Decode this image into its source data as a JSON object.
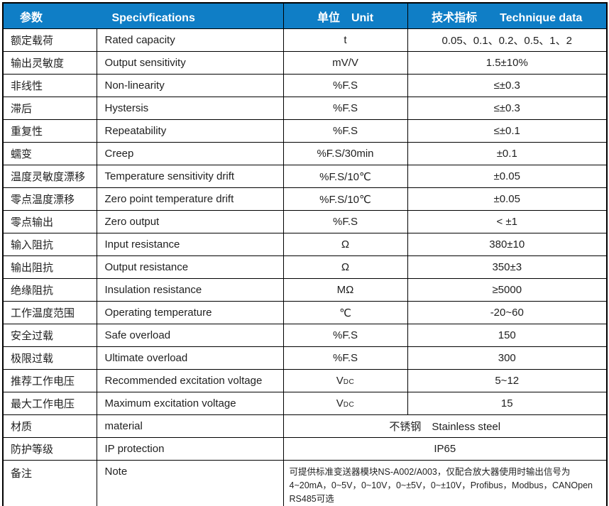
{
  "colors": {
    "header_bg": "#0f7ec6",
    "header_text": "#ffffff",
    "border": "#000000",
    "body_text": "#1f1f1f"
  },
  "table": {
    "header": {
      "param_cn": "参数",
      "spec_en": "Specivfications",
      "unit_label": "单位　Unit",
      "data_label": "技术指标　　Technique data"
    },
    "rows": [
      {
        "cn": "额定载荷",
        "en": "Rated capacity",
        "unit": "t",
        "value": "0.05、0.1、0.2、0.5、1、2"
      },
      {
        "cn": "输出灵敏度",
        "en": "Output sensitivity",
        "unit": "mV/V",
        "value": "1.5±10%"
      },
      {
        "cn": "非线性",
        "en": "Non-linearity",
        "unit": "%F.S",
        "value": "≤±0.3"
      },
      {
        "cn": "滞后",
        "en": "Hystersis",
        "unit": "%F.S",
        "value": "≤±0.3"
      },
      {
        "cn": "重复性",
        "en": "Repeatability",
        "unit": "%F.S",
        "value": "≤±0.1"
      },
      {
        "cn": "蠕变",
        "en": "Creep",
        "unit": "%F.S/30min",
        "value": "±0.1"
      },
      {
        "cn": "温度灵敏度漂移",
        "en": "Temperature sensitivity drift",
        "unit": "%F.S/10℃",
        "value": "±0.05"
      },
      {
        "cn": "零点温度漂移",
        "en": "Zero point temperature drift",
        "unit": "%F.S/10℃",
        "value": "±0.05"
      },
      {
        "cn": "零点输出",
        "en": "Zero output",
        "unit": "%F.S",
        "value": "< ±1"
      },
      {
        "cn": "输入阻抗",
        "en": "Input resistance",
        "unit": "Ω",
        "value": "380±10"
      },
      {
        "cn": "输出阻抗",
        "en": "Output resistance",
        "unit": "Ω",
        "value": "350±3"
      },
      {
        "cn": "绝缘阻抗",
        "en": "Insulation resistance",
        "unit": "MΩ",
        "value": "≥5000"
      },
      {
        "cn": "工作温度范围",
        "en": "Operating temperature",
        "unit": "℃",
        "value": "-20~60"
      },
      {
        "cn": "安全过载",
        "en": "Safe overload",
        "unit": "%F.S",
        "value": "150"
      },
      {
        "cn": "极限过载",
        "en": "Ultimate overload",
        "unit": "%F.S",
        "value": "300"
      },
      {
        "cn": "推荐工作电压",
        "en": "Recommended excitation voltage",
        "unit": "V",
        "unit_sub": "DC",
        "value": "5~12"
      },
      {
        "cn": "最大工作电压",
        "en": "Maximum excitation voltage",
        "unit": "V",
        "unit_sub": "DC",
        "value": "15"
      },
      {
        "cn": "材质",
        "en": "material",
        "merged": "不锈钢　Stainless steel"
      },
      {
        "cn": "防护等级",
        "en": "IP protection",
        "merged": "IP65"
      },
      {
        "cn": "备注",
        "en": "Note",
        "top": true,
        "merged_align": "left",
        "merged": "可提供标准变送器模块NS-A002/A003，仅配合放大器使用时输出信号为 4~20mA，0~5V，0~10V，0~±5V，0~±10V，Profibus，Modbus，CANOpen RS485可选"
      }
    ]
  }
}
